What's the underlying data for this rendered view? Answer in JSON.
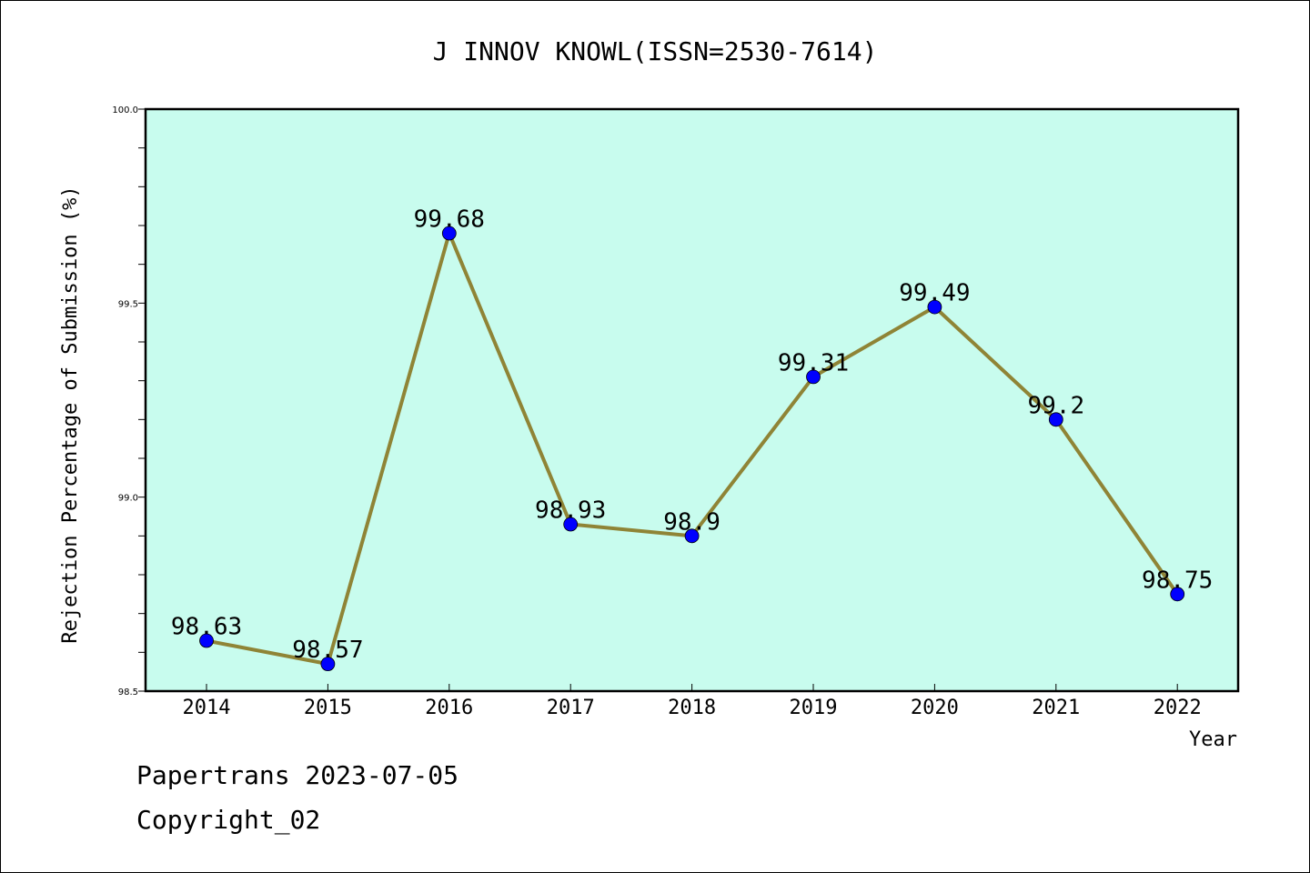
{
  "chart_data": {
    "type": "line",
    "title": "J INNOV KNOWL(ISSN=2530-7614)",
    "xlabel": "Year",
    "ylabel": "Rejection Percentage of Submission (%)",
    "categories": [
      "2014",
      "2015",
      "2016",
      "2017",
      "2018",
      "2019",
      "2020",
      "2021",
      "2022"
    ],
    "series": [
      {
        "values": [
          98.63,
          98.57,
          99.68,
          98.93,
          98.9,
          99.31,
          99.49,
          99.2,
          98.75
        ],
        "labels": [
          "98.63",
          "98.57",
          "99.68",
          "98.93",
          "98.9",
          "99.31",
          "99.49",
          "99.2",
          "98.75"
        ]
      }
    ],
    "ylim": [
      98.5,
      100.0
    ],
    "yticks": [
      "98.5",
      "99.0",
      "99.5",
      "100.0"
    ],
    "grid": false,
    "colors": {
      "plot_background": "#c8fcee",
      "line": "#8f8436",
      "marker": "#0000ff"
    }
  },
  "footer": {
    "line1": "Papertrans 2023-07-05",
    "line2": "Copyright_02"
  }
}
